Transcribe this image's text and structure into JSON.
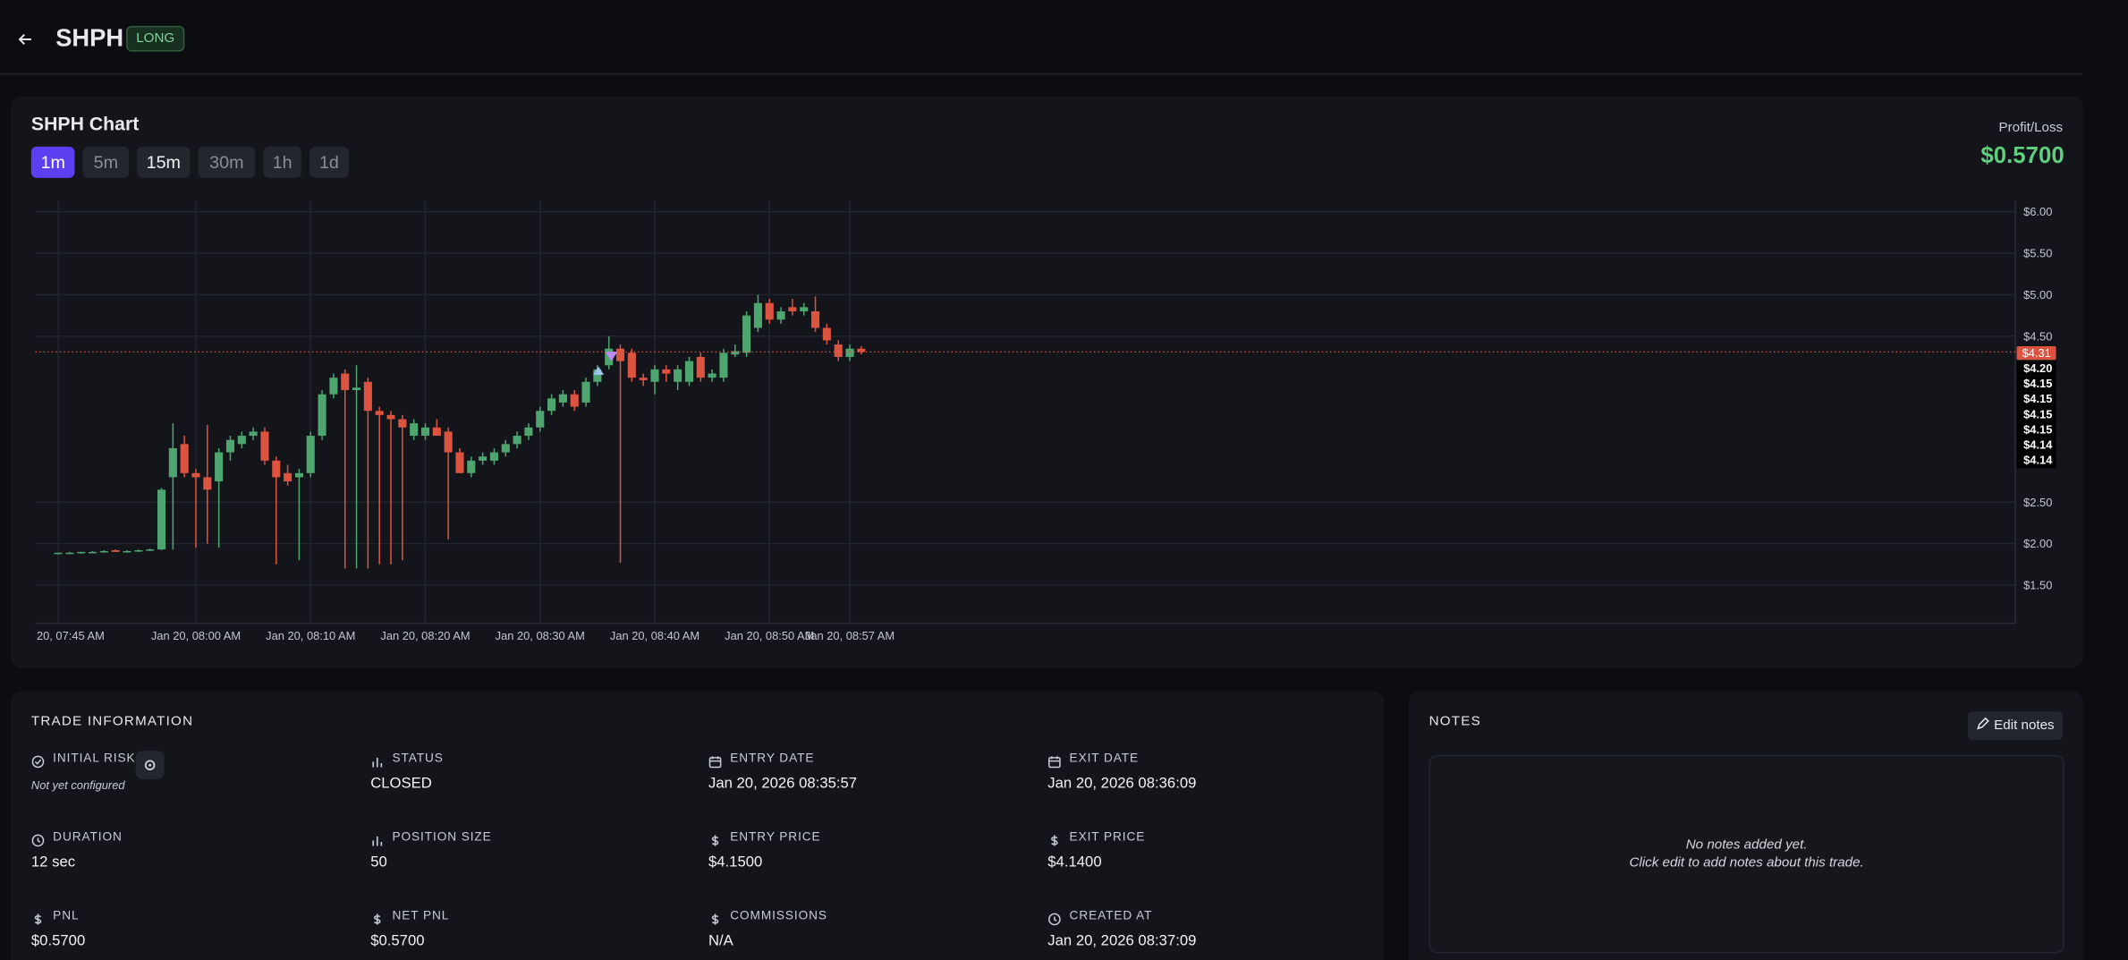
{
  "header": {
    "symbol": "SHPH",
    "badge": "LONG"
  },
  "chart_panel": {
    "timeframes": [
      "1m",
      "5m",
      "15m",
      "30m",
      "1h",
      "1d"
    ],
    "pnl_label": "Profit/Loss",
    "pnl_value": "$0.5700"
  },
  "chart_data": {
    "type": "candlestick",
    "title": "SHPH Chart",
    "up_color": "#4fa56f",
    "down_color": "#dc5440",
    "open": [
      1.88,
      1.89,
      1.89,
      1.9,
      1.9,
      1.92,
      1.9,
      1.91,
      1.92,
      1.93,
      2.8,
      3.2,
      2.85,
      2.8,
      2.75,
      3.1,
      3.2,
      3.3,
      3.35,
      3.0,
      2.85,
      2.8,
      2.85,
      3.3,
      3.8,
      4.05,
      3.85,
      3.95,
      3.6,
      3.55,
      3.5,
      3.3,
      3.3,
      3.4,
      3.35,
      3.1,
      2.85,
      3.0,
      3.0,
      3.1,
      3.2,
      3.3,
      3.4,
      3.6,
      3.7,
      3.8,
      3.7,
      3.95,
      4.15,
      4.35,
      4.3,
      4.0,
      3.95,
      4.1,
      3.95,
      3.95,
      4.25,
      4.0,
      4.0,
      4.28,
      4.3,
      4.6,
      4.9,
      4.7,
      4.85,
      4.8,
      4.8,
      4.6,
      4.4,
      4.25,
      4.35
    ],
    "high": [
      1.89,
      1.9,
      1.9,
      1.91,
      1.92,
      1.93,
      1.92,
      1.93,
      1.94,
      2.67,
      3.45,
      3.3,
      2.9,
      3.43,
      3.15,
      3.3,
      3.35,
      3.4,
      3.4,
      3.05,
      2.95,
      2.9,
      3.35,
      3.85,
      4.05,
      4.1,
      4.15,
      4.0,
      3.65,
      3.6,
      3.55,
      3.5,
      3.45,
      3.5,
      3.4,
      3.15,
      3.05,
      3.1,
      3.15,
      3.25,
      3.35,
      3.45,
      3.65,
      3.8,
      3.85,
      3.85,
      4.0,
      4.15,
      4.5,
      4.4,
      4.35,
      4.05,
      4.15,
      4.15,
      4.15,
      4.25,
      4.3,
      4.1,
      4.35,
      4.4,
      4.8,
      5.0,
      4.95,
      4.85,
      4.95,
      4.9,
      4.98,
      4.65,
      4.45,
      4.4,
      4.38
    ],
    "low": [
      1.87,
      1.88,
      1.88,
      1.89,
      1.89,
      1.9,
      1.89,
      1.9,
      1.91,
      1.92,
      1.93,
      2.8,
      1.95,
      2.0,
      1.95,
      3.0,
      3.15,
      3.25,
      2.95,
      1.75,
      2.7,
      1.8,
      2.8,
      3.25,
      3.75,
      1.7,
      1.7,
      1.7,
      1.75,
      1.75,
      1.8,
      3.25,
      3.25,
      3.3,
      2.05,
      2.85,
      2.8,
      2.95,
      2.95,
      3.05,
      3.15,
      3.25,
      3.35,
      3.55,
      3.65,
      3.6,
      3.65,
      3.9,
      4.1,
      1.77,
      3.95,
      3.9,
      3.8,
      3.95,
      3.85,
      3.9,
      3.95,
      3.95,
      3.95,
      4.25,
      4.25,
      4.55,
      4.65,
      4.65,
      4.75,
      4.75,
      4.55,
      4.4,
      4.2,
      4.2,
      4.28
    ],
    "close": [
      1.89,
      1.89,
      1.9,
      1.9,
      1.91,
      1.9,
      1.91,
      1.92,
      1.93,
      2.65,
      3.15,
      2.85,
      2.8,
      2.65,
      3.1,
      3.25,
      3.3,
      3.35,
      3.0,
      2.8,
      2.75,
      2.85,
      3.3,
      3.8,
      4.0,
      3.85,
      3.88,
      3.6,
      3.55,
      3.5,
      3.4,
      3.45,
      3.4,
      3.3,
      3.1,
      2.85,
      3.0,
      3.05,
      3.1,
      3.2,
      3.3,
      3.4,
      3.6,
      3.75,
      3.8,
      3.65,
      3.95,
      4.1,
      4.35,
      4.2,
      4.0,
      3.97,
      4.1,
      4.05,
      4.1,
      4.2,
      4.0,
      4.05,
      4.3,
      4.32,
      4.75,
      4.9,
      4.7,
      4.8,
      4.8,
      4.85,
      4.6,
      4.45,
      4.25,
      4.35,
      4.31
    ],
    "xlim": [
      -2,
      170.6
    ],
    "xticks": [
      {
        "value": 0,
        "label": "20, 07:45 AM"
      },
      {
        "value": 12,
        "label": "Jan 20, 08:00 AM"
      },
      {
        "value": 22,
        "label": "Jan 20, 08:10 AM"
      },
      {
        "value": 32,
        "label": "Jan 20, 08:20 AM"
      },
      {
        "value": 42,
        "label": "Jan 20, 08:30 AM"
      },
      {
        "value": 52,
        "label": "Jan 20, 08:40 AM"
      },
      {
        "value": 62,
        "label": "Jan 20, 08:50 AM"
      },
      {
        "value": 69,
        "label": "Jan 20, 08:57 AM"
      }
    ],
    "ylim": [
      1.04,
      6.13
    ],
    "yticks": [
      {
        "value": 6,
        "label": "$6.00"
      },
      {
        "value": 5.5,
        "label": "$5.50"
      },
      {
        "value": 5,
        "label": "$5.00"
      },
      {
        "value": 4.5,
        "label": "$4.50"
      },
      {
        "value": 2.5,
        "label": "$2.50"
      },
      {
        "value": 2,
        "label": "$2.00"
      },
      {
        "value": 1.5,
        "label": "$1.50"
      }
    ],
    "grid": true,
    "last_price": {
      "value": 4.31,
      "label": "$4.31",
      "color": "#dc5440"
    },
    "price_labels": [
      {
        "value": 4.2,
        "label": "$4.20"
      },
      {
        "value": 4.15,
        "label": "$4.15"
      },
      {
        "value": 4.15,
        "label": "$4.15"
      },
      {
        "value": 4.15,
        "label": "$4.15"
      },
      {
        "value": 4.15,
        "label": "$4.15"
      },
      {
        "value": 4.14,
        "label": "$4.14"
      },
      {
        "value": 4.14,
        "label": "$4.14"
      }
    ]
  },
  "trade_info": {
    "title": "TRADE INFORMATION",
    "fields": [
      {
        "label": "INITIAL RISK",
        "value": "Not yet configured"
      },
      {
        "label": "STATUS",
        "value": "CLOSED"
      },
      {
        "label": "ENTRY DATE",
        "value": "Jan 20, 2026 08:35:57"
      },
      {
        "label": "EXIT DATE",
        "value": "Jan 20, 2026 08:36:09"
      },
      {
        "label": "DURATION",
        "value": "12 sec"
      },
      {
        "label": "POSITION SIZE",
        "value": "50"
      },
      {
        "label": "ENTRY PRICE",
        "value": "$4.1500"
      },
      {
        "label": "EXIT PRICE",
        "value": "$4.1400"
      },
      {
        "label": "PNL",
        "value": "$0.5700"
      },
      {
        "label": "NET PNL",
        "value": "$0.5700"
      },
      {
        "label": "COMMISSIONS",
        "value": "N/A"
      },
      {
        "label": "CREATED AT",
        "value": "Jan 20, 2026 08:37:09"
      }
    ]
  },
  "notes": {
    "title": "NOTES",
    "edit_button": "Edit notes",
    "empty_line1": "No notes added yet.",
    "empty_line2": "Click edit to add notes about this trade."
  }
}
